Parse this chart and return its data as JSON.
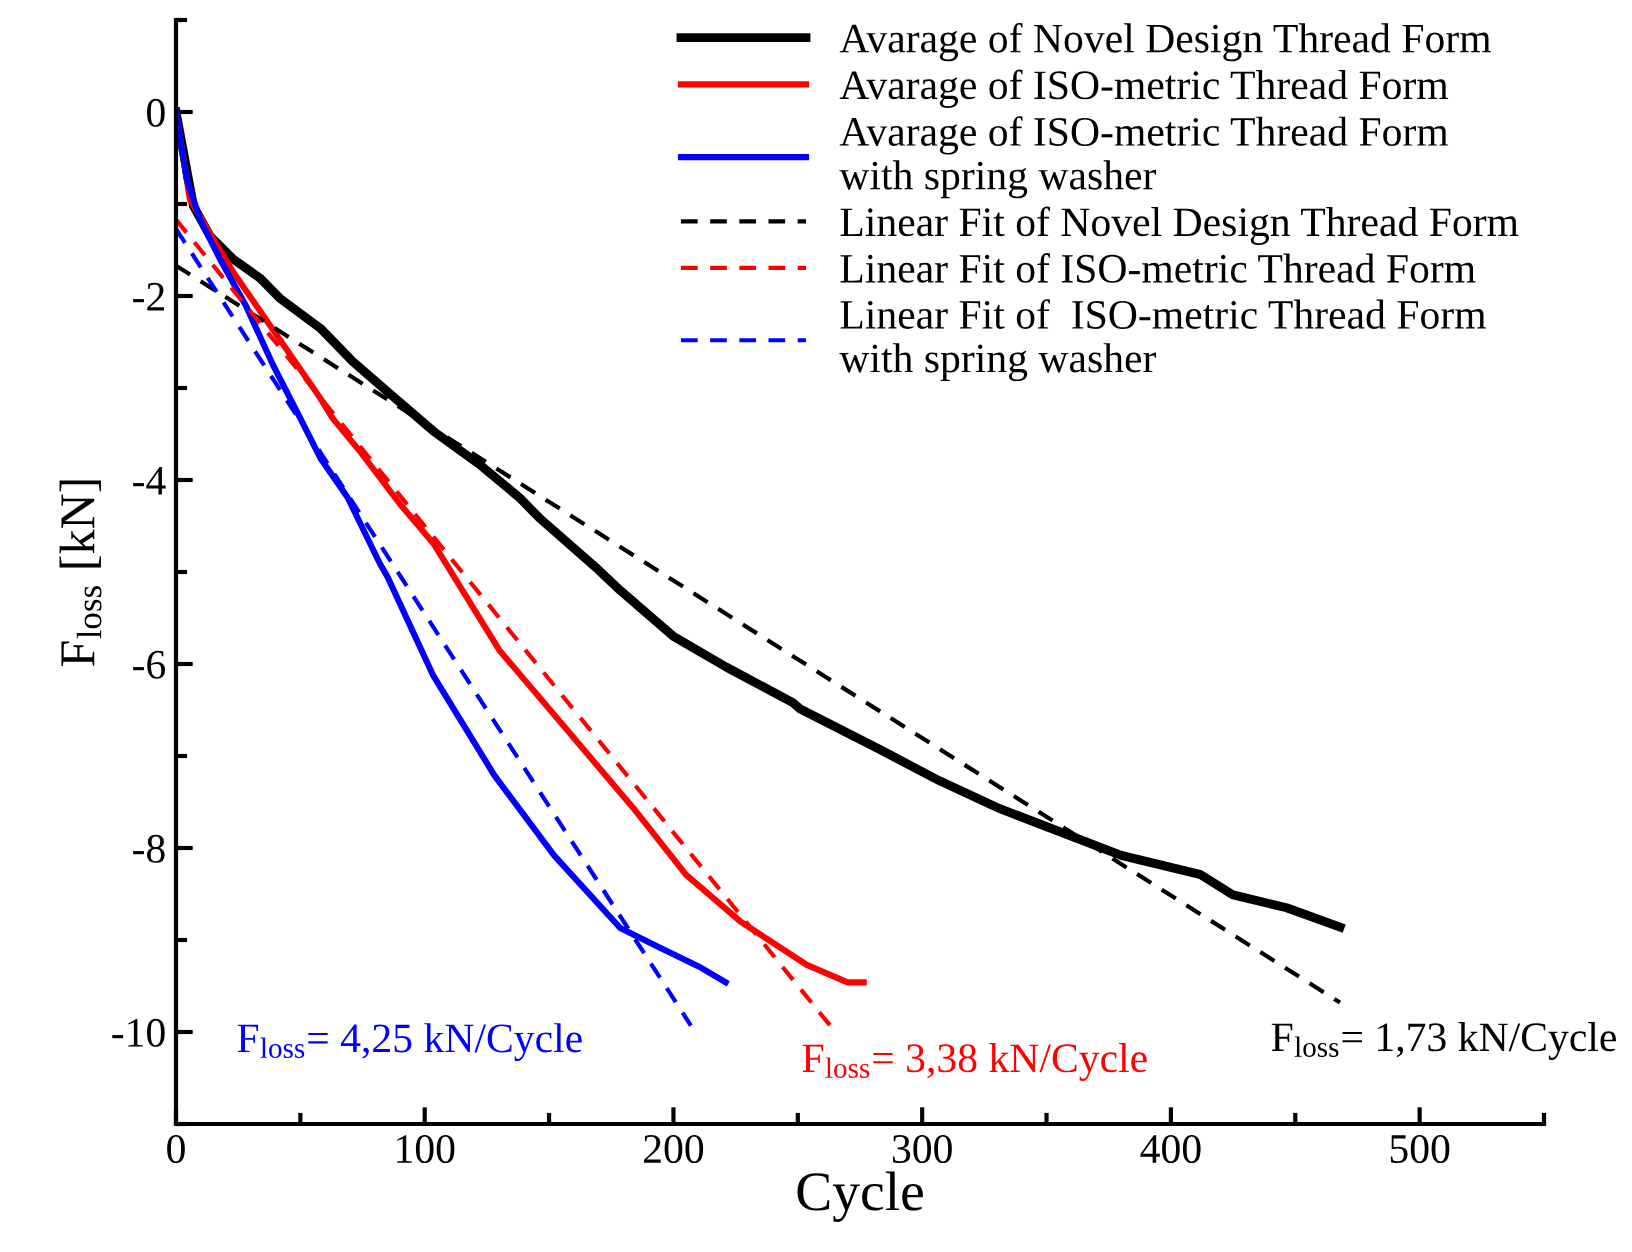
{
  "chart_data": {
    "type": "line",
    "xlabel": "Cycle",
    "ylabel": "F$_{loss}$ [kN]",
    "xlim": [
      0,
      550
    ],
    "ylim": [
      -11,
      1
    ],
    "xticks": [
      0,
      100,
      200,
      300,
      400,
      500
    ],
    "yticks": [
      -10,
      -8,
      -6,
      -4,
      -2,
      0
    ],
    "grid": false,
    "legend": "top right",
    "marker": "none",
    "line_style": "solid",
    "series": [
      {
        "name": "Avarage of Novel Design Thread Form",
        "color": "#000000",
        "x": [
          0,
          7,
          13.7,
          23,
          34,
          42,
          58,
          71,
          85,
          103.5,
          122,
          138,
          146,
          170,
          178.6,
          200,
          221,
          248,
          251,
          283,
          307,
          331,
          380,
          412,
          425,
          446.5,
          468
        ],
        "values": [
          0,
          -1.02,
          -1.35,
          -1.6,
          -1.81,
          -2.03,
          -2.35,
          -2.71,
          -3.04,
          -3.47,
          -3.83,
          -4.19,
          -4.41,
          -4.98,
          -5.2,
          -5.7,
          -6.03,
          -6.42,
          -6.49,
          -6.93,
          -7.27,
          -7.57,
          -8.08,
          -8.29,
          -8.51,
          -8.65,
          -8.86
        ]
      },
      {
        "name": "Avarage of ISO-metric Thread Form",
        "color": "#ff0000",
        "x": [
          0,
          5.6,
          15,
          23,
          34,
          47,
          58,
          63,
          74,
          90,
          103.5,
          130,
          157,
          184,
          205,
          227,
          253.6,
          270,
          276.5
        ],
        "values": [
          0,
          -0.95,
          -1.38,
          -1.74,
          -2.17,
          -2.68,
          -3.11,
          -3.33,
          -3.69,
          -4.26,
          -4.69,
          -5.85,
          -6.71,
          -7.57,
          -8.29,
          -8.8,
          -9.27,
          -9.46,
          -9.46
        ]
      },
      {
        "name": "Avarage of ISO-metric Thread Form\nwith spring washer",
        "color": "#0000ff",
        "x": [
          0,
          4.3,
          9.7,
          17.7,
          28,
          39,
          50,
          58,
          69,
          82,
          85,
          103.5,
          128,
          152,
          178.6,
          195,
          211,
          221
        ],
        "values": [
          0,
          -0.73,
          -1.17,
          -1.6,
          -2.1,
          -2.75,
          -3.33,
          -3.76,
          -4.19,
          -4.91,
          -5.05,
          -6.13,
          -7.21,
          -8.08,
          -8.87,
          -9.09,
          -9.3,
          -9.46
        ]
      },
      {
        "name": "Linear Fit of Novel Design Thread Form",
        "color": "#000000",
        "line_style": "dashed",
        "x": [
          0,
          468
        ],
        "values": [
          -1.67,
          -9.68
        ]
      },
      {
        "name": "Linear Fit of ISO-metric Thread Form",
        "color": "#ff0000",
        "line_style": "dashed",
        "x": [
          0,
          263
        ],
        "values": [
          -1.17,
          -9.93
        ]
      },
      {
        "name": "Linear Fit of  ISO-metric Thread Form\nwith spring washer",
        "color": "#0000ff",
        "line_style": "dashed",
        "x": [
          0,
          207
        ],
        "values": [
          -1.27,
          -9.93
        ]
      }
    ],
    "annotations": [
      "F$_{loss}$= 1,73 kN/Cycle",
      "F$_{loss}$= 3,38 kN/Cycle",
      "F$_{loss}$= 4,25 kN/Cycle"
    ]
  }
}
